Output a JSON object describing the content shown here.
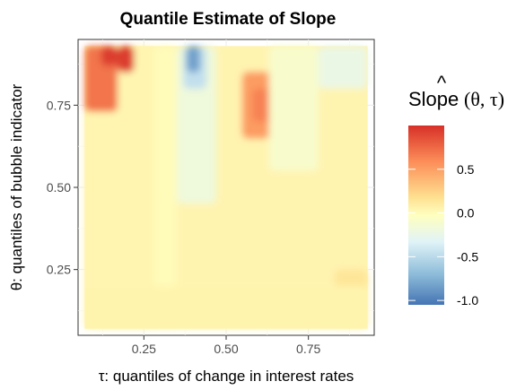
{
  "chart_data": {
    "type": "heatmap",
    "title": "Quantile Estimate of Slope",
    "xlabel": "τ: quantiles of change in interest rates",
    "ylabel": "θ: quantiles of bubble indicator",
    "xlim": [
      0.05,
      0.95
    ],
    "ylim": [
      0.05,
      0.95
    ],
    "x_ticks": [
      0.25,
      0.5,
      0.75
    ],
    "y_ticks": [
      0.25,
      0.5,
      0.75
    ],
    "x_tick_labels": [
      "0.25",
      "0.50",
      "0.75"
    ],
    "y_tick_labels": [
      "0.25",
      "0.50",
      "0.75"
    ],
    "tau_range": [
      0.07,
      0.93
    ],
    "theta_range": [
      0.07,
      0.93
    ],
    "grid": true,
    "legend": {
      "title_main": "Slope",
      "title_args": "(θ, τ)",
      "title_hat": "^",
      "placement": "right",
      "range": [
        -1.05,
        1.0
      ],
      "ticks": [
        0.5,
        0.0,
        -0.5,
        -1.0
      ],
      "tick_labels": [
        "0.5",
        "0.0",
        "-0.5",
        "-1.0"
      ]
    },
    "colormap": [
      "#d73027",
      "#fc8d59",
      "#fee090",
      "#ffffbf",
      "#e0f3f8",
      "#91bfdb",
      "#4575b4"
    ],
    "regions": [
      {
        "tau": [
          0.07,
          0.28
        ],
        "theta": [
          0.07,
          0.93
        ],
        "value": 0.08
      },
      {
        "tau": [
          0.07,
          0.17
        ],
        "theta": [
          0.73,
          0.93
        ],
        "value": 0.75
      },
      {
        "tau": [
          0.12,
          0.17
        ],
        "theta": [
          0.87,
          0.93
        ],
        "value": 0.95
      },
      {
        "tau": [
          0.17,
          0.22
        ],
        "theta": [
          0.85,
          0.93
        ],
        "value": 0.95
      },
      {
        "tau": [
          0.28,
          0.35
        ],
        "theta": [
          0.07,
          0.93
        ],
        "value": 0.02
      },
      {
        "tau": [
          0.35,
          0.47
        ],
        "theta": [
          0.45,
          0.93
        ],
        "value": -0.2
      },
      {
        "tau": [
          0.37,
          0.44
        ],
        "theta": [
          0.8,
          0.93
        ],
        "value": -0.5
      },
      {
        "tau": [
          0.38,
          0.42
        ],
        "theta": [
          0.85,
          0.93
        ],
        "value": -0.85
      },
      {
        "tau": [
          0.55,
          0.66
        ],
        "theta": [
          0.65,
          0.85
        ],
        "value": 0.6
      },
      {
        "tau": [
          0.58,
          0.64
        ],
        "theta": [
          0.7,
          0.8
        ],
        "value": 0.7
      },
      {
        "tau": [
          0.63,
          0.78
        ],
        "theta": [
          0.55,
          0.93
        ],
        "value": -0.1
      },
      {
        "tau": [
          0.78,
          0.93
        ],
        "theta": [
          0.8,
          0.93
        ],
        "value": -0.25
      },
      {
        "tau": [
          0.83,
          0.93
        ],
        "theta": [
          0.07,
          0.25
        ],
        "value": 0.25
      },
      {
        "tau": [
          0.07,
          0.93
        ],
        "theta": [
          0.07,
          0.2
        ],
        "value": 0.1
      }
    ]
  }
}
